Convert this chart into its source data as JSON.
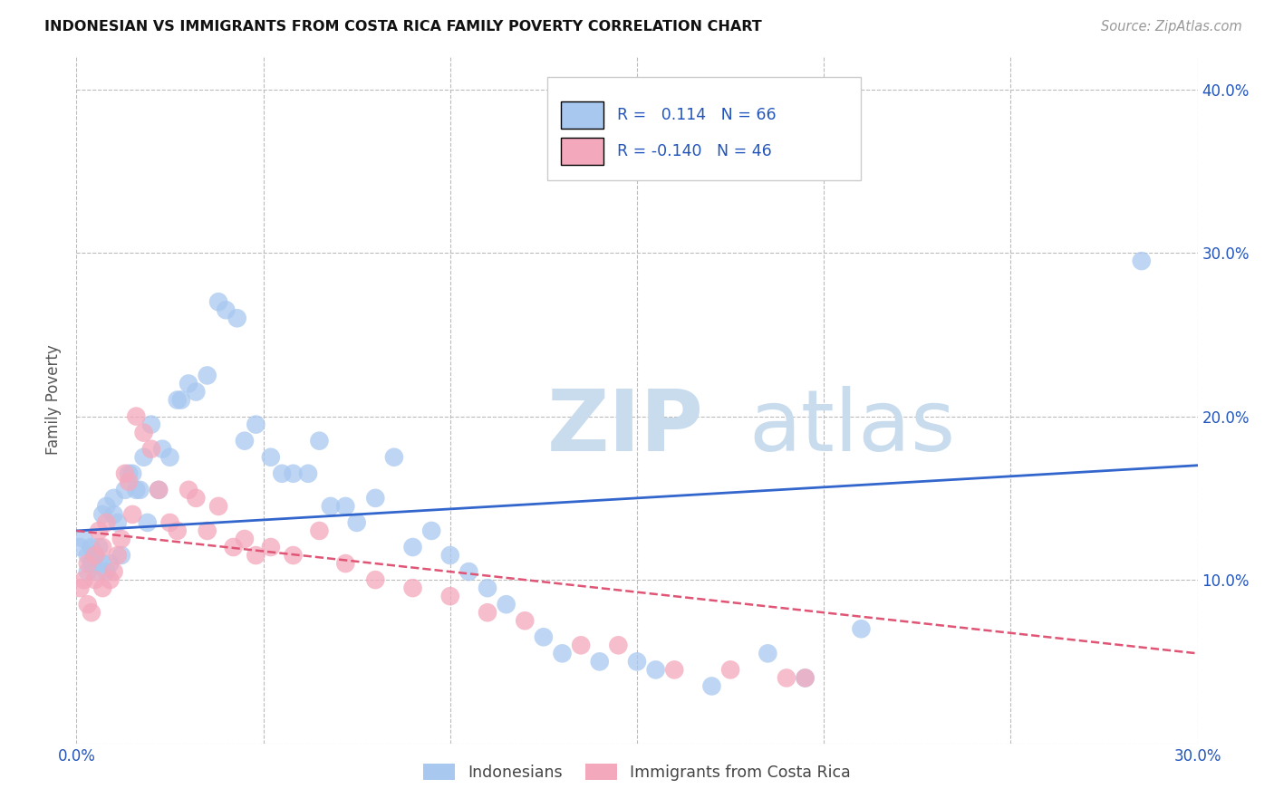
{
  "title": "INDONESIAN VS IMMIGRANTS FROM COSTA RICA FAMILY POVERTY CORRELATION CHART",
  "source": "Source: ZipAtlas.com",
  "xlabel_blue": "Indonesians",
  "xlabel_pink": "Immigrants from Costa Rica",
  "ylabel": "Family Poverty",
  "xlim": [
    0.0,
    0.3
  ],
  "ylim": [
    0.0,
    0.42
  ],
  "blue_R": "0.114",
  "blue_N": "66",
  "pink_R": "-0.140",
  "pink_N": "46",
  "blue_color": "#A8C8F0",
  "pink_color": "#F4A8BC",
  "blue_line_color": "#3366CC",
  "pink_line_color": "#E05575",
  "watermark_zip": "ZIP",
  "watermark_atlas": "atlas",
  "blue_scatter_x": [
    0.001,
    0.002,
    0.003,
    0.003,
    0.004,
    0.004,
    0.005,
    0.005,
    0.006,
    0.006,
    0.007,
    0.007,
    0.008,
    0.008,
    0.009,
    0.01,
    0.01,
    0.011,
    0.012,
    0.013,
    0.014,
    0.015,
    0.016,
    0.017,
    0.018,
    0.019,
    0.02,
    0.022,
    0.023,
    0.025,
    0.027,
    0.028,
    0.03,
    0.032,
    0.035,
    0.038,
    0.04,
    0.043,
    0.045,
    0.048,
    0.052,
    0.055,
    0.058,
    0.062,
    0.065,
    0.068,
    0.072,
    0.075,
    0.08,
    0.085,
    0.09,
    0.095,
    0.1,
    0.105,
    0.11,
    0.115,
    0.125,
    0.13,
    0.14,
    0.15,
    0.155,
    0.17,
    0.185,
    0.195,
    0.21,
    0.285
  ],
  "blue_scatter_y": [
    0.12,
    0.125,
    0.105,
    0.115,
    0.11,
    0.12,
    0.115,
    0.115,
    0.105,
    0.12,
    0.11,
    0.14,
    0.105,
    0.145,
    0.11,
    0.14,
    0.15,
    0.135,
    0.115,
    0.155,
    0.165,
    0.165,
    0.155,
    0.155,
    0.175,
    0.135,
    0.195,
    0.155,
    0.18,
    0.175,
    0.21,
    0.21,
    0.22,
    0.215,
    0.225,
    0.27,
    0.265,
    0.26,
    0.185,
    0.195,
    0.175,
    0.165,
    0.165,
    0.165,
    0.185,
    0.145,
    0.145,
    0.135,
    0.15,
    0.175,
    0.12,
    0.13,
    0.115,
    0.105,
    0.095,
    0.085,
    0.065,
    0.055,
    0.05,
    0.05,
    0.045,
    0.035,
    0.055,
    0.04,
    0.07,
    0.295
  ],
  "pink_scatter_x": [
    0.001,
    0.002,
    0.003,
    0.003,
    0.004,
    0.005,
    0.005,
    0.006,
    0.007,
    0.007,
    0.008,
    0.009,
    0.01,
    0.011,
    0.012,
    0.013,
    0.014,
    0.015,
    0.016,
    0.018,
    0.02,
    0.022,
    0.025,
    0.027,
    0.03,
    0.032,
    0.035,
    0.038,
    0.042,
    0.045,
    0.048,
    0.052,
    0.058,
    0.065,
    0.072,
    0.08,
    0.09,
    0.1,
    0.11,
    0.12,
    0.135,
    0.145,
    0.16,
    0.175,
    0.19,
    0.195
  ],
  "pink_scatter_y": [
    0.095,
    0.1,
    0.085,
    0.11,
    0.08,
    0.1,
    0.115,
    0.13,
    0.095,
    0.12,
    0.135,
    0.1,
    0.105,
    0.115,
    0.125,
    0.165,
    0.16,
    0.14,
    0.2,
    0.19,
    0.18,
    0.155,
    0.135,
    0.13,
    0.155,
    0.15,
    0.13,
    0.145,
    0.12,
    0.125,
    0.115,
    0.12,
    0.115,
    0.13,
    0.11,
    0.1,
    0.095,
    0.09,
    0.08,
    0.075,
    0.06,
    0.06,
    0.045,
    0.045,
    0.04,
    0.04
  ]
}
